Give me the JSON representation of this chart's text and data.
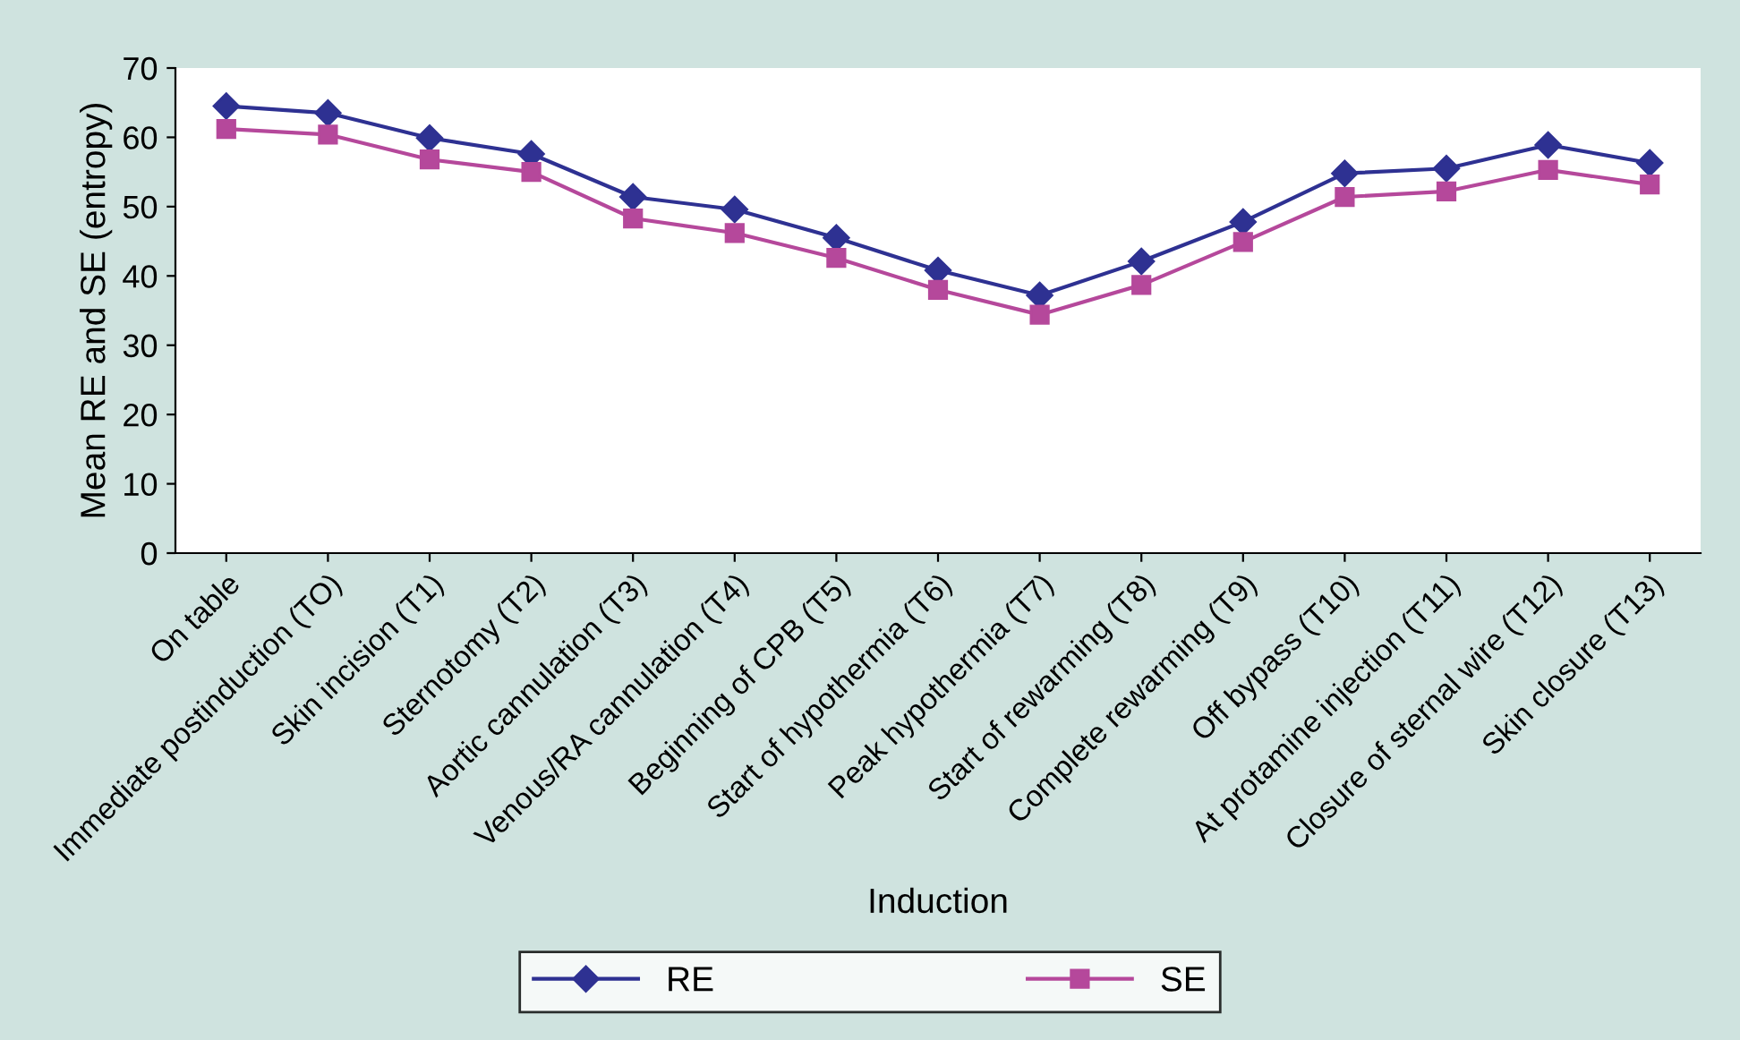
{
  "chart_data": {
    "type": "line",
    "xlabel": "Induction",
    "ylabel": "Mean RE and SE (entropy)",
    "categories": [
      "On table",
      "Immediate postinduction (TO)",
      "Skin incision (T1)",
      "Sternotomy (T2)",
      "Aortic cannulation (T3)",
      "Venous/RA cannulation (T4)",
      "Beginning of CPB (T5)",
      "Start of hypothermia (T6)",
      "Peak hypothermia (T7)",
      "Start of rewarming (T8)",
      "Complete rewarming (T9)",
      "Off bypass (T10)",
      "At protamine injection (T11)",
      "Closure of sternal wire (T12)",
      "Skin closure (T13)"
    ],
    "series": [
      {
        "name": "RE",
        "color": "#2e3192",
        "marker": "diamond",
        "values": [
          64.5,
          63.5,
          59.9,
          57.6,
          51.4,
          49.6,
          45.5,
          40.8,
          37.2,
          42.1,
          47.8,
          54.8,
          55.5,
          58.9,
          56.3
        ]
      },
      {
        "name": "SE",
        "color": "#b5489b",
        "marker": "square",
        "values": [
          61.2,
          60.4,
          56.8,
          55.0,
          48.3,
          46.2,
          42.6,
          38.0,
          34.4,
          38.7,
          44.9,
          51.4,
          52.2,
          55.3,
          53.2
        ]
      }
    ],
    "ylim": [
      0,
      70
    ],
    "yticks": [
      0,
      10,
      20,
      30,
      40,
      50,
      60,
      70
    ],
    "grid": false,
    "legend": "bottom",
    "line_style": "solid"
  }
}
